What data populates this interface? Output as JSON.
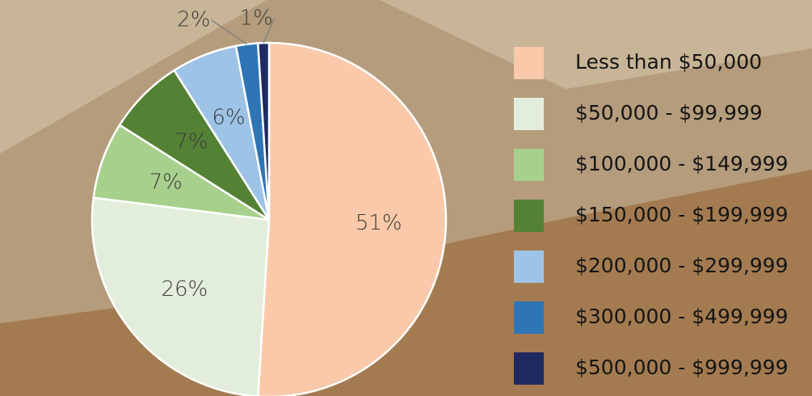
{
  "chart_data": {
    "type": "pie",
    "categories": [
      "Less than $50,000",
      "$50,000 - $99,999",
      "$100,000 - $149,999",
      "$150,000 - $199,999",
      "$200,000 - $299,999",
      "$300,000 - $499,999",
      "$500,000 - $999,999"
    ],
    "values": [
      51,
      26,
      7,
      7,
      6,
      2,
      1
    ],
    "value_labels": [
      "51%",
      "26%",
      "7%",
      "7%",
      "6%",
      "2%",
      "1%"
    ],
    "colors": [
      "#f9c9a9",
      "#e2eedb",
      "#a8d08d",
      "#548235",
      "#9dc3e6",
      "#2e75b6",
      "#1f2a60"
    ]
  }
}
